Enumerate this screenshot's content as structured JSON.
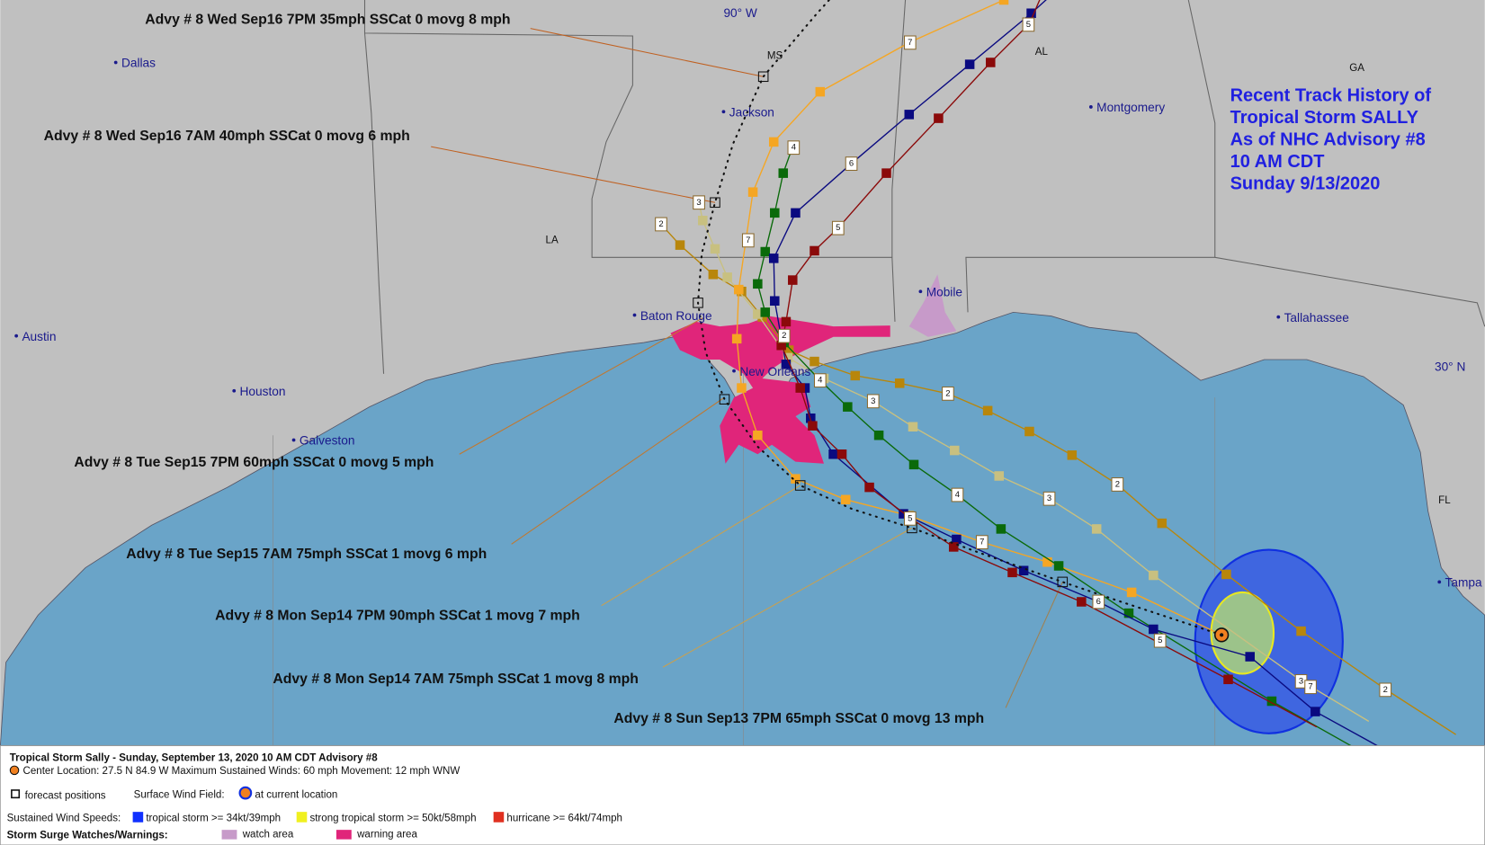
{
  "title_box": {
    "lines": [
      "Recent Track History of",
      "Tropical Storm SALLY",
      "As of NHC Advisory #8",
      "10 AM CDT",
      "Sunday 9/13/2020"
    ]
  },
  "places": [
    "Dallas",
    "Jackson",
    "Montgomery",
    "Mobile",
    "Tallahassee",
    "Baton Rouge",
    "New Orleans",
    "Austin",
    "Houston",
    "Galveston",
    "Tampa"
  ],
  "states": [
    "MS",
    "AL",
    "GA",
    "LA",
    "FL"
  ],
  "graticule": [
    "90° W",
    "30° N"
  ],
  "advisories": [
    "Advy # 8 Wed Sep16 7PM  35mph SSCat 0 movg 8 mph",
    "Advy # 8 Wed Sep16 7AM  40mph SSCat 0 movg 6 mph",
    "Advy # 8 Tue Sep15 7PM  60mph SSCat 0 movg 5 mph",
    "Advy # 8 Tue Sep15 7AM  75mph SSCat 1 movg 6 mph",
    "Advy # 8 Mon Sep14 7PM  90mph SSCat 1 movg 7 mph",
    "Advy # 8 Mon Sep14 7AM  75mph SSCat 1 movg 8 mph",
    "Advy # 8 Sun Sep13 7PM  65mph SSCat 0 movg 13 mph"
  ],
  "track_labels": [
    "7",
    "5",
    "4",
    "6",
    "5",
    "3",
    "2",
    "7",
    "2",
    "3",
    "2",
    "4",
    "3",
    "2",
    "4",
    "7",
    "6",
    "5",
    "3",
    "7",
    "2",
    "5"
  ],
  "legend": {
    "header": "Tropical Storm Sally  -  Sunday, September 13, 2020  10 AM CDT   Advisory #8",
    "info": "Center Location: 27.5 N  84.9 W   Maximum Sustained Winds: 60 mph   Movement: 12 mph WNW",
    "forecast": "forecast positions",
    "wind_field": "Surface Wind Field:",
    "current": "at current location",
    "speeds_title": "Sustained Wind Speeds:",
    "speeds": [
      "tropical storm >= 34kt/39mph",
      "strong tropical storm >= 50kt/58mph",
      "hurricane >= 64kt/74mph"
    ],
    "surge_title": "Storm Surge Watches/Warnings:",
    "surge": [
      "watch area",
      "warning area"
    ]
  }
}
